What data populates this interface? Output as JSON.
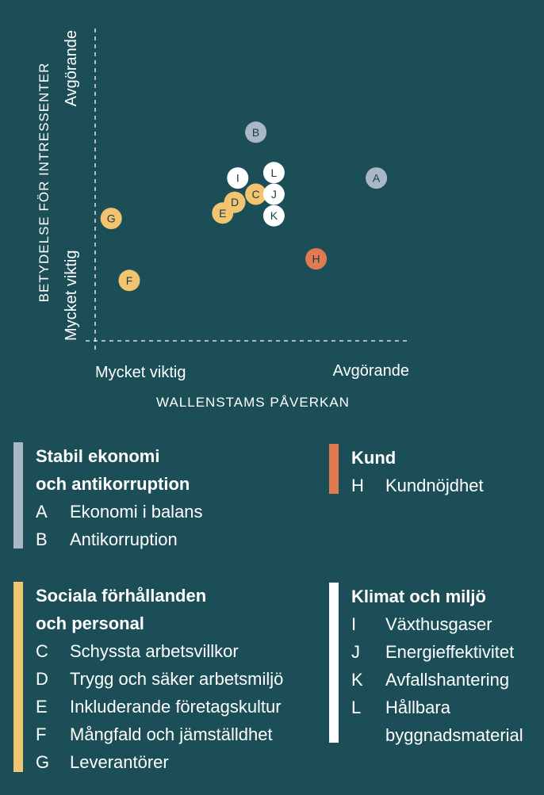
{
  "chart_data": {
    "type": "scatter",
    "title": "",
    "xlabel": "WALLENSTAMS PÅVERKAN",
    "ylabel": "BETYDELSE FÖR INTRESSENTER",
    "x_tick_low": "Mycket viktig",
    "x_tick_high": "Avgörande",
    "y_tick_low": "Mycket viktig",
    "y_tick_high": "Avgörande",
    "xlim": [
      0,
      100
    ],
    "ylim": [
      0,
      100
    ],
    "points": [
      {
        "label": "A",
        "x": 92,
        "y": 56,
        "group": "ekonomi"
      },
      {
        "label": "B",
        "x": 52,
        "y": 73,
        "group": "ekonomi"
      },
      {
        "label": "C",
        "x": 52,
        "y": 50,
        "group": "sociala"
      },
      {
        "label": "D",
        "x": 45,
        "y": 47,
        "group": "sociala"
      },
      {
        "label": "E",
        "x": 41,
        "y": 43,
        "group": "sociala"
      },
      {
        "label": "F",
        "x": 10,
        "y": 18,
        "group": "sociala"
      },
      {
        "label": "G",
        "x": 4,
        "y": 41,
        "group": "sociala"
      },
      {
        "label": "H",
        "x": 72,
        "y": 26,
        "group": "kund"
      },
      {
        "label": "I",
        "x": 46,
        "y": 56,
        "group": "klimat"
      },
      {
        "label": "J",
        "x": 58,
        "y": 50,
        "group": "klimat"
      },
      {
        "label": "K",
        "x": 58,
        "y": 42,
        "group": "klimat"
      },
      {
        "label": "L",
        "x": 58,
        "y": 58,
        "group": "klimat"
      }
    ]
  },
  "colors": {
    "background": "#1c4e57",
    "ekonomi": "#a9b7c6",
    "sociala": "#f3c46f",
    "kund": "#e07a52",
    "klimat": "#ffffff",
    "point_text": "#1c3a44"
  },
  "legend": {
    "ekonomi": {
      "title_line1": "Stabil ekonomi",
      "title_line2": "och antikorruption",
      "items": [
        {
          "letter": "A",
          "label": "Ekonomi i balans"
        },
        {
          "letter": "B",
          "label": "Antikorruption"
        }
      ]
    },
    "kund": {
      "title_line1": "Kund",
      "items": [
        {
          "letter": "H",
          "label": "Kundnöjdhet"
        }
      ]
    },
    "sociala": {
      "title_line1": "Sociala förhållanden",
      "title_line2": "och personal",
      "items": [
        {
          "letter": "C",
          "label": "Schyssta arbetsvillkor"
        },
        {
          "letter": "D",
          "label": "Trygg och säker arbetsmiljö"
        },
        {
          "letter": "E",
          "label": "Inkluderande företagskultur"
        },
        {
          "letter": "F",
          "label": "Mångfald och jämställdhet"
        },
        {
          "letter": "G",
          "label": "Leverantörer"
        }
      ]
    },
    "klimat": {
      "title_line1": "Klimat och miljö",
      "items": [
        {
          "letter": "I",
          "label": "Växthusgaser"
        },
        {
          "letter": "J",
          "label": "Energieffektivitet"
        },
        {
          "letter": "K",
          "label": "Avfallshantering"
        },
        {
          "letter": "L",
          "label": "Hållbara"
        },
        {
          "letter": "",
          "label": "byggnadsmaterial"
        }
      ]
    }
  }
}
